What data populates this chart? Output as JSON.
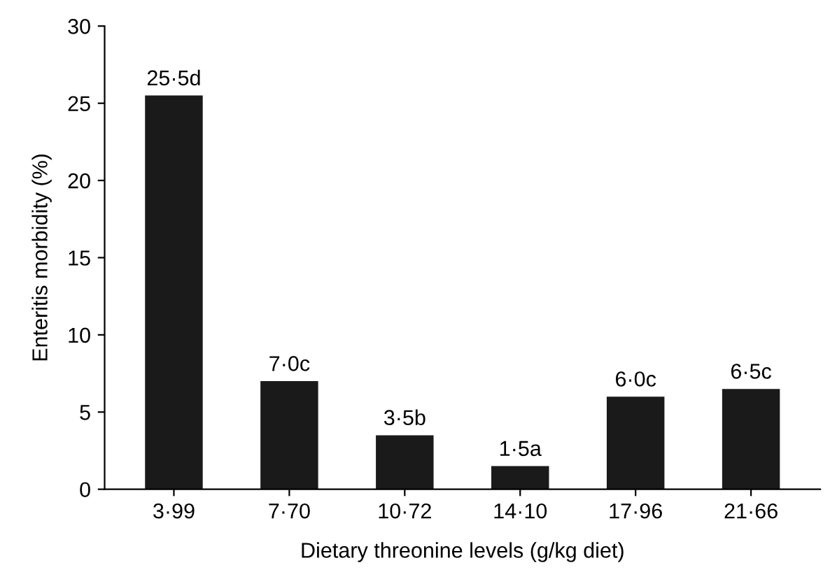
{
  "chart_data": {
    "type": "bar",
    "xlabel": "Dietary threonine levels (g/kg diet)",
    "ylabel": "Enteritis morbidity (%)",
    "categories": [
      "3·99",
      "7·70",
      "10·72",
      "14·10",
      "17·96",
      "21·66"
    ],
    "values": [
      25.5,
      7.0,
      3.5,
      1.5,
      6.0,
      6.5
    ],
    "value_labels": [
      "25·5d",
      "7·0c",
      "3·5b",
      "1·5a",
      "6·0c",
      "6·5c"
    ],
    "color": "#1a1a1a",
    "ylim": [
      0,
      30
    ],
    "yticks": [
      0,
      5,
      10,
      15,
      20,
      25,
      30
    ],
    "grid": false
  }
}
